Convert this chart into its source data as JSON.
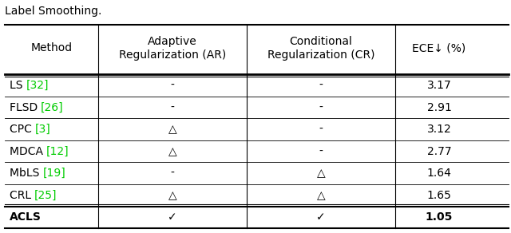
{
  "col_headers": [
    "Method",
    "Adaptive\nRegularization (AR)",
    "Conditional\nRegularization (CR)",
    "ECE↓ (%)"
  ],
  "rows": [
    [
      "LS",
      "[32]",
      "-",
      "-",
      "3.17"
    ],
    [
      "FLSD",
      "[26]",
      "-",
      "-",
      "2.91"
    ],
    [
      "CPC",
      "[3]",
      "△",
      "-",
      "3.12"
    ],
    [
      "MDCA",
      "[12]",
      "△",
      "-",
      "2.77"
    ],
    [
      "MbLS",
      "[19]",
      "-",
      "△",
      "1.64"
    ],
    [
      "CRL",
      "[25]",
      "△",
      "△",
      "1.65"
    ],
    [
      "ACLS",
      "",
      "✓",
      "✓",
      "1.05"
    ]
  ],
  "ref_color": "#00cc00",
  "normal_color": "#000000",
  "col_proportions": [
    0.185,
    0.295,
    0.295,
    0.175
  ],
  "fig_width": 6.4,
  "fig_height": 2.92,
  "font_size": 10.0,
  "header_font_size": 10.0
}
